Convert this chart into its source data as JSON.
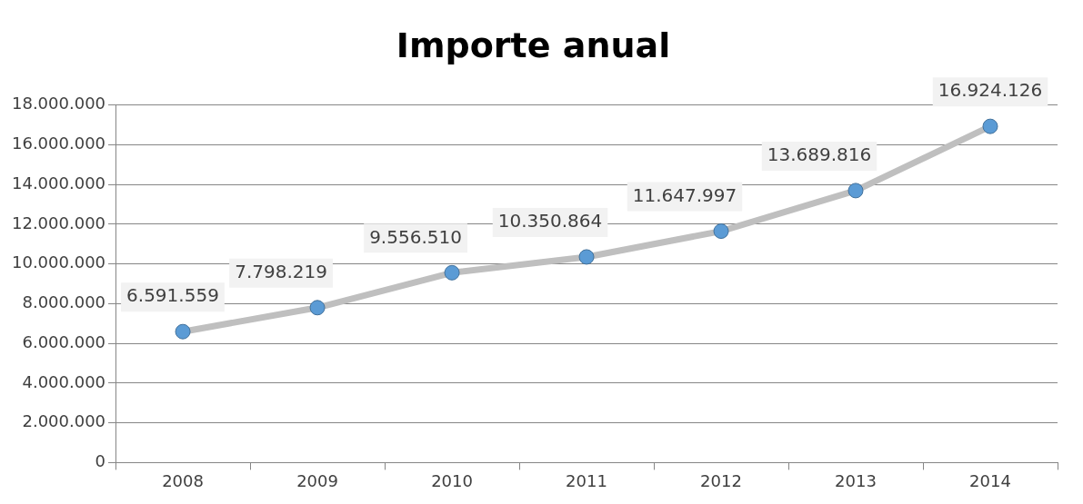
{
  "chart_data": {
    "type": "line",
    "title": "Importe anual",
    "categories": [
      "2008",
      "2009",
      "2010",
      "2011",
      "2012",
      "2013",
      "2014"
    ],
    "series": [
      {
        "color": "#bfbfbf",
        "values": [
          6591559,
          7798219,
          9556510,
          10350864,
          11647997,
          13689816,
          16924126
        ],
        "value_labels": [
          "6.591.559",
          "7.798.219",
          "9.556.510",
          "10.350.864",
          "11.647.997",
          "13.689.816",
          "16.924.126"
        ]
      }
    ],
    "ylim": [
      0,
      18000000
    ],
    "yticks": [
      0,
      {
        "value": 2000000,
        "label": "2.000.000"
      },
      {
        "value": 4000000,
        "label": "4.000.000"
      },
      {
        "value": 6000000,
        "label": "6.000.000"
      },
      {
        "value": 8000000,
        "label": "8.000.000"
      },
      {
        "value": 10000000,
        "label": "10.000.000"
      },
      {
        "value": 12000000,
        "label": "12.000.000"
      },
      {
        "value": 14000000,
        "label": "14.000.000"
      },
      {
        "value": 16000000,
        "label": "16.000.000"
      },
      {
        "value": 18000000,
        "label": "18.000.000"
      }
    ],
    "grid": "y",
    "legend": false,
    "marker": "circle",
    "line_style": "solid"
  }
}
